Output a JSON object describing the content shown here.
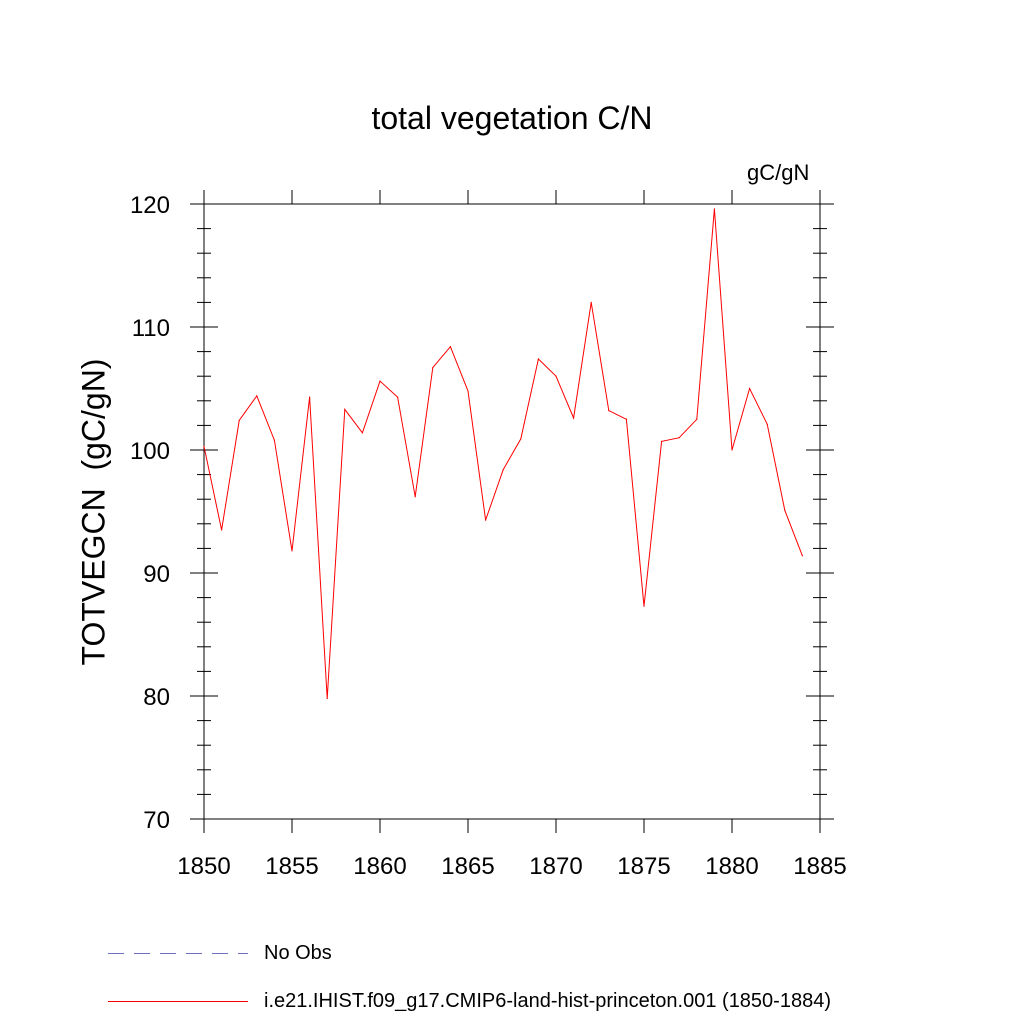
{
  "title": "total vegetation C/N",
  "units_label": "gC/gN",
  "chart_data": {
    "type": "line",
    "title": "total vegetation C/N",
    "xlabel": "",
    "ylabel": "TOTVEGCN  (gC/gN)",
    "xlim": [
      1850,
      1885
    ],
    "ylim": [
      70,
      120
    ],
    "x_ticks": [
      1850,
      1855,
      1860,
      1865,
      1870,
      1875,
      1880,
      1885
    ],
    "y_ticks": [
      70,
      80,
      90,
      100,
      110,
      120
    ],
    "grid": false,
    "series": [
      {
        "name": "i.e21.IHIST.f09_g17.CMIP6-land-hist-princeton.001 (1850-1884)",
        "color": "#ff0000",
        "style": "solid",
        "x": [
          1850,
          1851,
          1852,
          1853,
          1854,
          1855,
          1856,
          1857,
          1858,
          1859,
          1860,
          1861,
          1862,
          1863,
          1864,
          1865,
          1866,
          1867,
          1868,
          1869,
          1870,
          1871,
          1872,
          1873,
          1874,
          1875,
          1876,
          1877,
          1878,
          1879,
          1880,
          1881,
          1882,
          1883,
          1884
        ],
        "y": [
          100.3,
          93.5,
          102.4,
          104.4,
          100.8,
          91.8,
          104.3,
          79.8,
          103.3,
          101.4,
          105.6,
          104.3,
          96.2,
          106.7,
          108.4,
          104.8,
          94.3,
          98.4,
          100.9,
          107.4,
          106.0,
          102.6,
          112.0,
          103.2,
          102.5,
          87.3,
          100.7,
          101.0,
          102.5,
          119.6,
          100.0,
          105.0,
          102.1,
          95.1,
          91.4
        ]
      },
      {
        "name": "No Obs",
        "color": "#7070c0",
        "style": "dashed",
        "x": [],
        "y": []
      }
    ],
    "legend_position": "bottom"
  },
  "legend": [
    {
      "label": "No Obs",
      "color": "#7070c0",
      "style": "dashed"
    },
    {
      "label": "i.e21.IHIST.f09_g17.CMIP6-land-hist-princeton.001 (1850-1884)",
      "color": "#ff0000",
      "style": "solid"
    }
  ]
}
